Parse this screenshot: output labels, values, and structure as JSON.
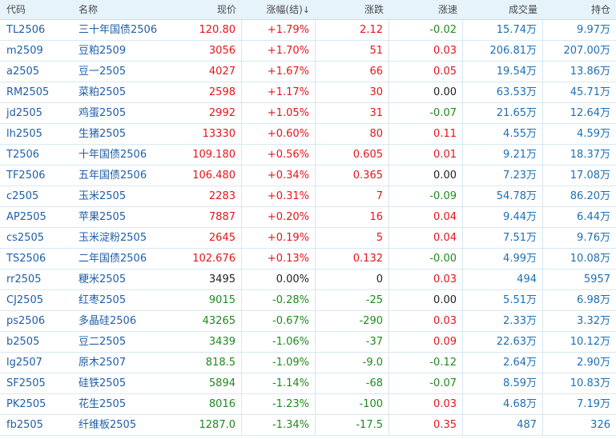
{
  "header": {
    "code": "代码",
    "name": "名称",
    "price": "现价",
    "pct": "涨幅(结)",
    "sort_mark": "↓",
    "change": "涨跌",
    "speed": "涨速",
    "volume": "成交量",
    "open_interest": "持仓"
  },
  "colors": {
    "up": "#e5141b",
    "down": "#1f8a1f",
    "flat": "#222222",
    "header_bg": "#e6f3fb",
    "link": "#1f5fa8"
  },
  "rows": [
    {
      "code": "TL2506",
      "name": "三十年国债2506",
      "price": "120.80",
      "pct": "+1.79%",
      "change": "2.12",
      "speed": "-0.02",
      "volume": "15.74万",
      "oi": "9.97万",
      "p": "up",
      "c": "up",
      "s": "down"
    },
    {
      "code": "m2509",
      "name": "豆粕2509",
      "price": "3056",
      "pct": "+1.70%",
      "change": "51",
      "speed": "0.03",
      "volume": "206.81万",
      "oi": "207.00万",
      "p": "up",
      "c": "up",
      "s": "up"
    },
    {
      "code": "a2505",
      "name": "豆一2505",
      "price": "4027",
      "pct": "+1.67%",
      "change": "66",
      "speed": "0.05",
      "volume": "19.54万",
      "oi": "13.86万",
      "p": "up",
      "c": "up",
      "s": "up"
    },
    {
      "code": "RM2505",
      "name": "菜粕2505",
      "price": "2598",
      "pct": "+1.17%",
      "change": "30",
      "speed": "0.00",
      "volume": "63.53万",
      "oi": "45.71万",
      "p": "up",
      "c": "up",
      "s": "flat"
    },
    {
      "code": "jd2505",
      "name": "鸡蛋2505",
      "price": "2992",
      "pct": "+1.05%",
      "change": "31",
      "speed": "-0.07",
      "volume": "21.65万",
      "oi": "12.64万",
      "p": "up",
      "c": "up",
      "s": "down"
    },
    {
      "code": "lh2505",
      "name": "生猪2505",
      "price": "13330",
      "pct": "+0.60%",
      "change": "80",
      "speed": "0.11",
      "volume": "4.55万",
      "oi": "4.59万",
      "p": "up",
      "c": "up",
      "s": "up"
    },
    {
      "code": "T2506",
      "name": "十年国债2506",
      "price": "109.180",
      "pct": "+0.56%",
      "change": "0.605",
      "speed": "0.01",
      "volume": "9.21万",
      "oi": "18.37万",
      "p": "up",
      "c": "up",
      "s": "up"
    },
    {
      "code": "TF2506",
      "name": "五年国债2506",
      "price": "106.480",
      "pct": "+0.34%",
      "change": "0.365",
      "speed": "0.00",
      "volume": "7.23万",
      "oi": "17.08万",
      "p": "up",
      "c": "up",
      "s": "flat"
    },
    {
      "code": "c2505",
      "name": "玉米2505",
      "price": "2283",
      "pct": "+0.31%",
      "change": "7",
      "speed": "-0.09",
      "volume": "54.78万",
      "oi": "86.20万",
      "p": "up",
      "c": "up",
      "s": "down"
    },
    {
      "code": "AP2505",
      "name": "苹果2505",
      "price": "7887",
      "pct": "+0.20%",
      "change": "16",
      "speed": "0.04",
      "volume": "9.44万",
      "oi": "6.44万",
      "p": "up",
      "c": "up",
      "s": "up"
    },
    {
      "code": "cs2505",
      "name": "玉米淀粉2505",
      "price": "2645",
      "pct": "+0.19%",
      "change": "5",
      "speed": "0.04",
      "volume": "7.51万",
      "oi": "9.76万",
      "p": "up",
      "c": "up",
      "s": "up"
    },
    {
      "code": "TS2506",
      "name": "二年国债2506",
      "price": "102.676",
      "pct": "+0.13%",
      "change": "0.132",
      "speed": "-0.00",
      "volume": "4.99万",
      "oi": "10.08万",
      "p": "up",
      "c": "up",
      "s": "down"
    },
    {
      "code": "rr2505",
      "name": "粳米2505",
      "price": "3495",
      "pct": "0.00%",
      "change": "0",
      "speed": "0.03",
      "volume": "494",
      "oi": "5957",
      "p": "flat",
      "c": "flat",
      "s": "up"
    },
    {
      "code": "CJ2505",
      "name": "红枣2505",
      "price": "9015",
      "pct": "-0.28%",
      "change": "-25",
      "speed": "0.00",
      "volume": "5.51万",
      "oi": "6.98万",
      "p": "down",
      "c": "down",
      "s": "flat"
    },
    {
      "code": "ps2506",
      "name": "多晶硅2506",
      "price": "43265",
      "pct": "-0.67%",
      "change": "-290",
      "speed": "0.03",
      "volume": "2.33万",
      "oi": "3.32万",
      "p": "down",
      "c": "down",
      "s": "up"
    },
    {
      "code": "b2505",
      "name": "豆二2505",
      "price": "3439",
      "pct": "-1.06%",
      "change": "-37",
      "speed": "0.09",
      "volume": "22.63万",
      "oi": "10.12万",
      "p": "down",
      "c": "down",
      "s": "up"
    },
    {
      "code": "lg2507",
      "name": "原木2507",
      "price": "818.5",
      "pct": "-1.09%",
      "change": "-9.0",
      "speed": "-0.12",
      "volume": "2.64万",
      "oi": "2.90万",
      "p": "down",
      "c": "down",
      "s": "down"
    },
    {
      "code": "SF2505",
      "name": "硅铁2505",
      "price": "5894",
      "pct": "-1.14%",
      "change": "-68",
      "speed": "-0.07",
      "volume": "8.59万",
      "oi": "10.83万",
      "p": "down",
      "c": "down",
      "s": "down"
    },
    {
      "code": "PK2505",
      "name": "花生2505",
      "price": "8016",
      "pct": "-1.23%",
      "change": "-100",
      "speed": "0.03",
      "volume": "4.68万",
      "oi": "7.19万",
      "p": "down",
      "c": "down",
      "s": "up"
    },
    {
      "code": "fb2505",
      "name": "纤维板2505",
      "price": "1287.0",
      "pct": "-1.34%",
      "change": "-17.5",
      "speed": "0.35",
      "volume": "487",
      "oi": "326",
      "p": "down",
      "c": "down",
      "s": "up"
    }
  ]
}
